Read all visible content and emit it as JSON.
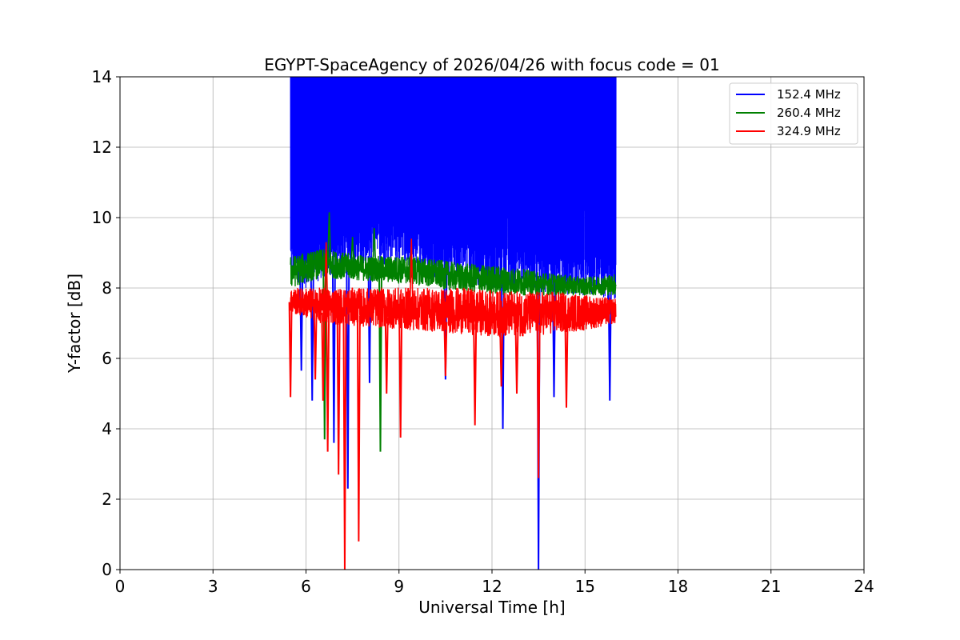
{
  "chart_data": {
    "type": "line",
    "title": "EGYPT-SpaceAgency of 2026/04/26 with focus code = 01",
    "xlabel": "Universal Time [h]",
    "ylabel": "Y-factor [dB]",
    "xlim": [
      0,
      24
    ],
    "ylim": [
      0,
      14
    ],
    "xticks": [
      0,
      3,
      6,
      9,
      12,
      15,
      18,
      21,
      24
    ],
    "yticks": [
      0,
      2,
      4,
      6,
      8,
      10,
      12,
      14
    ],
    "grid": true,
    "legend_position": "top-right",
    "series": [
      {
        "name": "152.4 MHz",
        "color": "#0000ff",
        "style": "dense-noise",
        "t_start": 5.5,
        "t_end": 16.0,
        "envelope": {
          "t": [
            5.5,
            6.0,
            7.0,
            8.0,
            9.0,
            10.0,
            11.0,
            12.0,
            13.0,
            14.0,
            15.0,
            16.0
          ],
          "low": [
            8.3,
            8.0,
            8.4,
            8.6,
            8.7,
            8.3,
            8.2,
            8.0,
            8.0,
            7.8,
            7.8,
            7.6
          ],
          "high": [
            14,
            14,
            14,
            14,
            14,
            14,
            14,
            14,
            14,
            14,
            14,
            14
          ]
        },
        "dips": [
          {
            "t": 5.85,
            "v": 5.65
          },
          {
            "t": 6.2,
            "v": 4.8
          },
          {
            "t": 6.9,
            "v": 3.6
          },
          {
            "t": 7.35,
            "v": 2.3
          },
          {
            "t": 8.05,
            "v": 5.3
          },
          {
            "t": 10.5,
            "v": 5.4
          },
          {
            "t": 12.35,
            "v": 4.0
          },
          {
            "t": 13.5,
            "v": 0.0
          },
          {
            "t": 14.0,
            "v": 4.9
          },
          {
            "t": 15.8,
            "v": 4.8
          }
        ]
      },
      {
        "name": "260.4 MHz",
        "color": "#008000",
        "style": "noise",
        "t_start": 5.5,
        "t_end": 16.0,
        "envelope": {
          "t": [
            5.5,
            6.5,
            8.0,
            9.5,
            11.0,
            12.5,
            14.0,
            15.0,
            16.0
          ],
          "low": [
            8.0,
            8.3,
            8.2,
            8.1,
            7.9,
            7.8,
            7.8,
            7.8,
            7.8
          ],
          "high": [
            8.9,
            9.1,
            8.9,
            8.9,
            8.7,
            8.6,
            8.4,
            8.3,
            8.4
          ]
        },
        "spikes": [
          {
            "t": 6.75,
            "v": 10.15
          },
          {
            "t": 7.5,
            "v": 9.45
          },
          {
            "t": 8.2,
            "v": 9.7
          }
        ],
        "dips": [
          {
            "t": 6.6,
            "v": 3.7
          },
          {
            "t": 8.4,
            "v": 3.35
          }
        ]
      },
      {
        "name": "324.9 MHz",
        "color": "#ff0000",
        "style": "noise",
        "t_start": 5.5,
        "t_end": 16.0,
        "envelope": {
          "t": [
            5.5,
            6.5,
            8.0,
            9.5,
            11.0,
            12.5,
            14.0,
            15.0,
            16.0
          ],
          "low": [
            7.3,
            7.0,
            6.9,
            6.8,
            6.7,
            6.6,
            6.7,
            6.8,
            7.0
          ],
          "high": [
            8.0,
            8.0,
            8.0,
            8.0,
            8.0,
            7.9,
            7.9,
            7.8,
            7.7
          ]
        },
        "spikes": [
          {
            "t": 6.65,
            "v": 9.3
          },
          {
            "t": 9.4,
            "v": 9.4
          }
        ],
        "dips": [
          {
            "t": 5.5,
            "v": 4.9
          },
          {
            "t": 6.3,
            "v": 5.4
          },
          {
            "t": 6.55,
            "v": 4.8
          },
          {
            "t": 6.7,
            "v": 3.35
          },
          {
            "t": 7.05,
            "v": 2.7
          },
          {
            "t": 7.25,
            "v": 0.0
          },
          {
            "t": 7.7,
            "v": 0.8
          },
          {
            "t": 8.6,
            "v": 5.0
          },
          {
            "t": 9.05,
            "v": 3.75
          },
          {
            "t": 10.5,
            "v": 5.5
          },
          {
            "t": 11.45,
            "v": 4.1
          },
          {
            "t": 12.3,
            "v": 5.2
          },
          {
            "t": 12.8,
            "v": 5.0
          },
          {
            "t": 13.5,
            "v": 2.6
          },
          {
            "t": 14.4,
            "v": 4.6
          }
        ]
      }
    ]
  }
}
